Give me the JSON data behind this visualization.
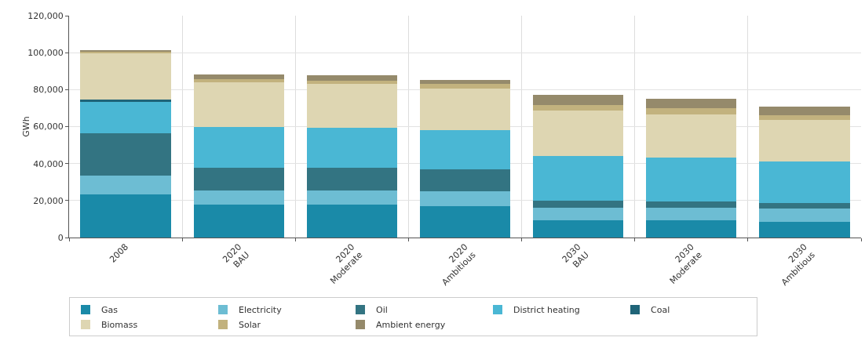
{
  "chart_data": {
    "type": "bar",
    "stacked": true,
    "ylabel": "GWh",
    "categories": [
      "2008",
      "2020\nBAU",
      "2020\nModerate",
      "2020\nAmbitious",
      "2030\nBAU",
      "2030\nModerate",
      "2030\nAmbitious"
    ],
    "series": [
      {
        "name": "Gas",
        "color": "#1a8aa8",
        "values": [
          23500,
          17800,
          17800,
          17100,
          9400,
          9400,
          8600
        ]
      },
      {
        "name": "Electricity",
        "color": "#6dbdd3",
        "values": [
          10000,
          7500,
          7500,
          7800,
          6900,
          6900,
          7000
        ]
      },
      {
        "name": "Oil",
        "color": "#337482",
        "values": [
          23000,
          12400,
          12400,
          11900,
          3500,
          3100,
          2900
        ]
      },
      {
        "name": "District heating",
        "color": "#4ab7d4",
        "values": [
          17000,
          22000,
          21600,
          21200,
          24500,
          23800,
          22700
        ]
      },
      {
        "name": "Coal",
        "color": "#1f6478",
        "values": [
          1000,
          0,
          0,
          0,
          0,
          0,
          0
        ]
      },
      {
        "name": "Biomass",
        "color": "#ded6b2",
        "values": [
          25000,
          24300,
          24000,
          22700,
          24600,
          23500,
          22200
        ]
      },
      {
        "name": "Solar",
        "color": "#c2b27e",
        "values": [
          1000,
          1800,
          1700,
          2200,
          2900,
          3100,
          2800
        ]
      },
      {
        "name": "Ambient energy",
        "color": "#958a6b",
        "values": [
          700,
          2500,
          2800,
          2300,
          5300,
          5100,
          4500
        ]
      }
    ],
    "ylim": [
      0,
      120000
    ],
    "yticks": [
      0,
      {
        "value": 20000,
        "label": "20,000"
      },
      {
        "value": 40000,
        "label": "40,000"
      },
      {
        "value": 60000,
        "label": "60,000"
      },
      {
        "value": 80000,
        "label": "80,000"
      },
      {
        "value": 100000,
        "label": "100,000"
      },
      {
        "value": 120000,
        "label": "120,000"
      }
    ],
    "grid": true,
    "legend": "bottom"
  }
}
